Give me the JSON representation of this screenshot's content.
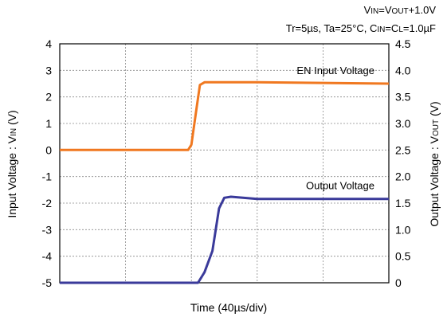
{
  "chart_data": {
    "type": "line",
    "conditions": {
      "line1": {
        "p1": "V",
        "s1": "IN",
        "p2": "=V",
        "s2": "OUT",
        "p3": "+1.0V"
      },
      "line2": {
        "p1": "Tr=5µs, Ta=25°C, C",
        "s1": "IN",
        "p2": "=C",
        "s2": "L",
        "p3": "=1.0µF"
      }
    },
    "xlabel": "Time (40µs/div)",
    "ylabel_left": {
      "p1": "Input Voltage : V",
      "s1": "IN",
      "p2": " (V)"
    },
    "ylabel_right": {
      "p1": "Output Voltage : V",
      "s1": "OUT",
      "p2": " (V)"
    },
    "x_divisions": 5,
    "left_axis": {
      "ylim": [
        -5,
        4
      ],
      "ticks": [
        "4",
        "3",
        "2",
        "1",
        "0",
        "-1",
        "-2",
        "-3",
        "-4",
        "-5"
      ]
    },
    "right_axis": {
      "ylim": [
        0,
        4.5
      ],
      "ticks": [
        "4.5",
        "4.0",
        "3.5",
        "3.0",
        "2.5",
        "2.0",
        "1.5",
        "1.0",
        "0.5",
        "0"
      ]
    },
    "grid": true,
    "series": [
      {
        "name": "EN Input Voltage",
        "axis": "left",
        "color": "#f07820",
        "points": [
          [
            0,
            0
          ],
          [
            1.95,
            0
          ],
          [
            2.0,
            0.2
          ],
          [
            2.08,
            1.6
          ],
          [
            2.13,
            2.45
          ],
          [
            2.2,
            2.55
          ],
          [
            3.0,
            2.55
          ],
          [
            5.0,
            2.5
          ]
        ]
      },
      {
        "name": "Output Voltage",
        "axis": "right",
        "color": "#3a3a9a",
        "points": [
          [
            0,
            0
          ],
          [
            2.1,
            0
          ],
          [
            2.2,
            0.2
          ],
          [
            2.32,
            0.6
          ],
          [
            2.42,
            1.4
          ],
          [
            2.5,
            1.6
          ],
          [
            2.6,
            1.62
          ],
          [
            3.0,
            1.58
          ],
          [
            5.0,
            1.58
          ]
        ]
      }
    ]
  }
}
